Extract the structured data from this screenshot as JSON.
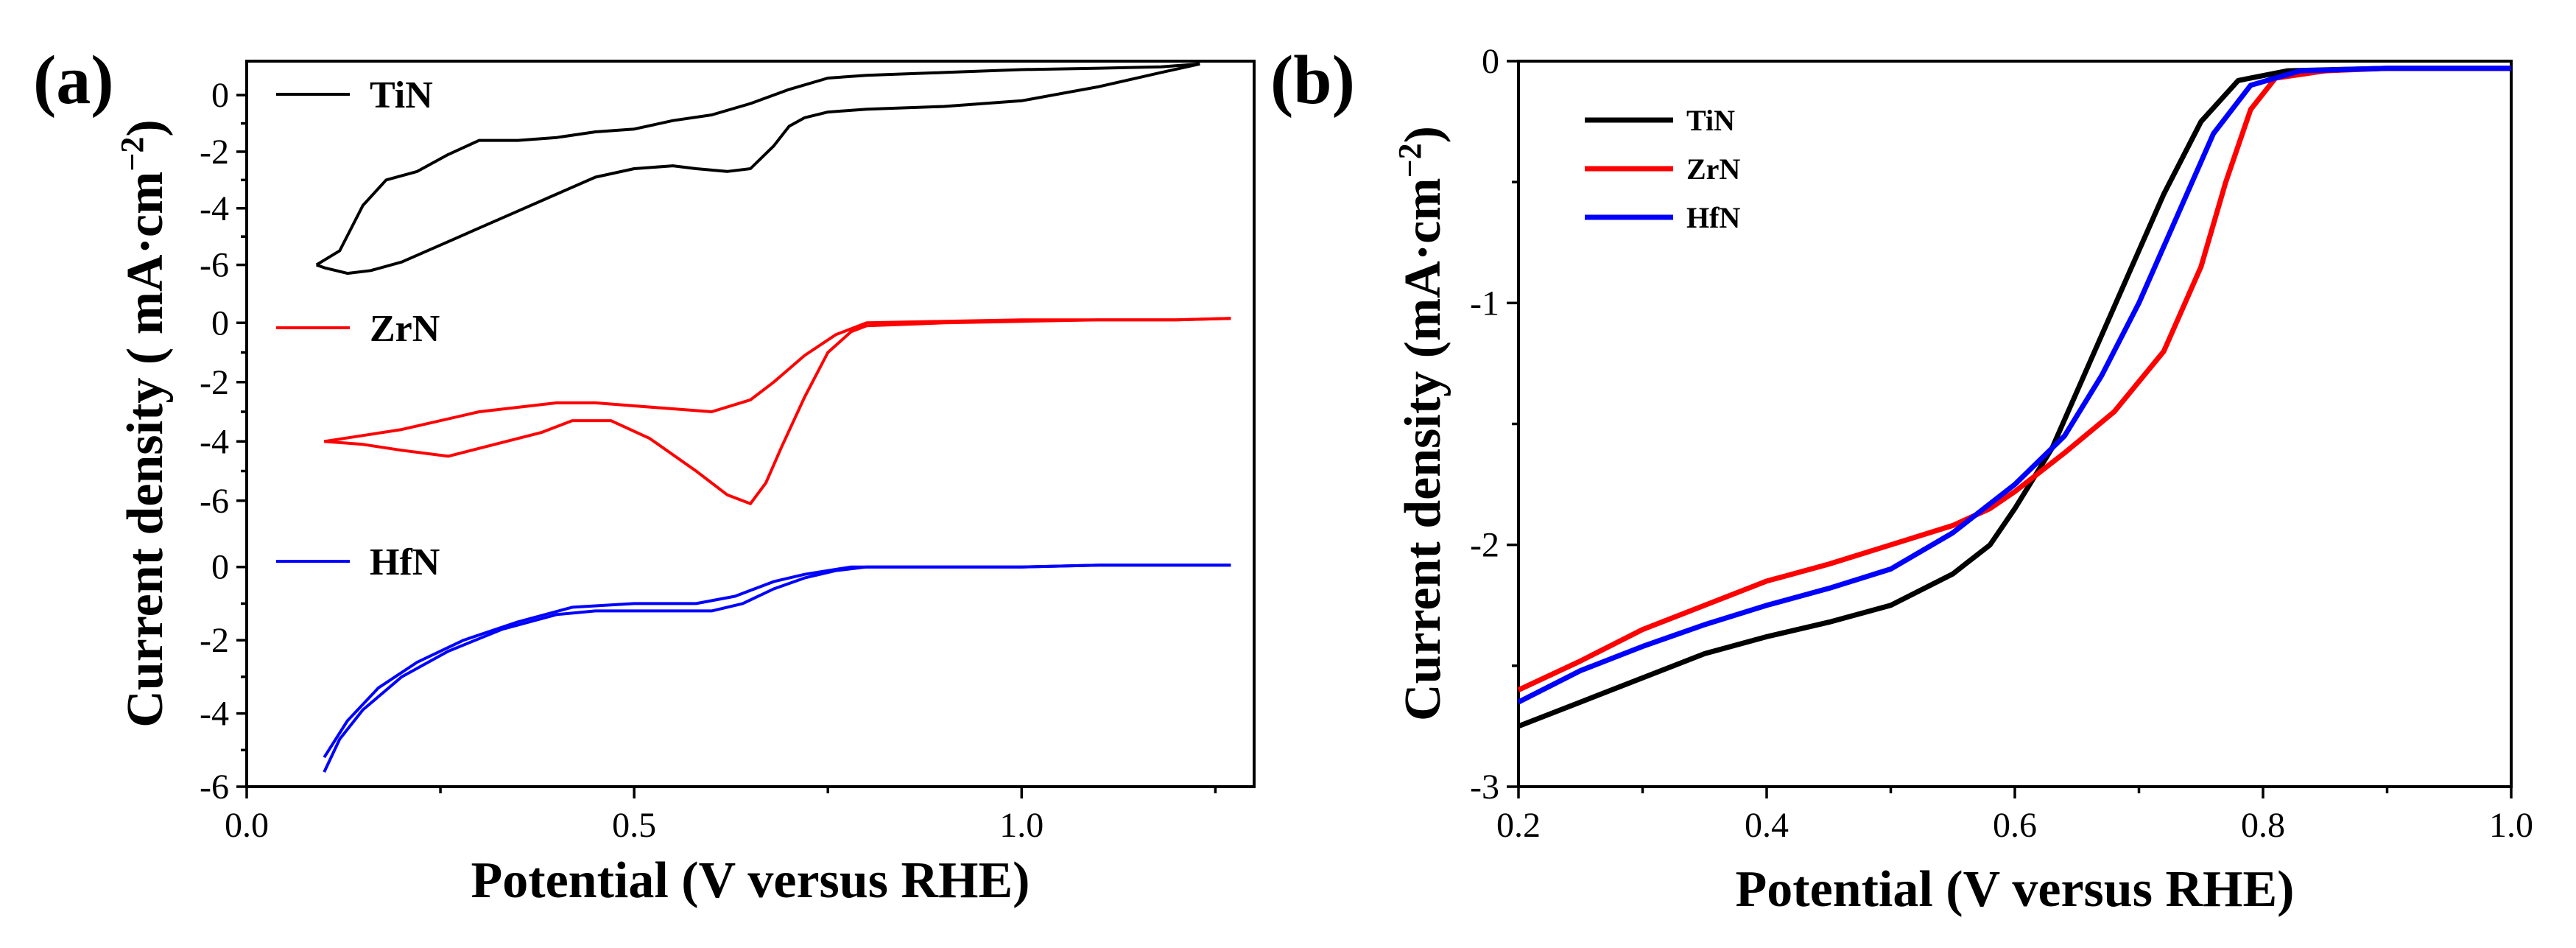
{
  "chart_data": [
    {
      "panel": "(a)",
      "type": "line",
      "subtype": "cyclic voltammetry, stacked offset panels",
      "xlabel": "Potential (V versus RHE)",
      "ylabel": "Current density ( mA·cm",
      "ylabel_sup": "−2",
      "ylabel_close": ")",
      "xlim": [
        0.0,
        1.3
      ],
      "xticks": [
        0.0,
        0.5,
        1.0
      ],
      "xtick_labels": [
        "0.0",
        "0.5",
        "1.0"
      ],
      "subpanels": [
        {
          "name": "TiN",
          "color": "#000000",
          "ylim": [
            -7,
            1.2
          ],
          "yticks": [
            0,
            -2,
            -4,
            -6
          ],
          "ytick_labels": [
            "0",
            "-2",
            "-4",
            "-6"
          ],
          "curves": [
            [
              [
                0.09,
                -6.0
              ],
              [
                0.12,
                -5.5
              ],
              [
                0.15,
                -3.9
              ],
              [
                0.18,
                -3.0
              ],
              [
                0.22,
                -2.7
              ],
              [
                0.26,
                -2.1
              ],
              [
                0.3,
                -1.6
              ],
              [
                0.35,
                -1.6
              ],
              [
                0.4,
                -1.5
              ],
              [
                0.45,
                -1.3
              ],
              [
                0.5,
                -1.2
              ],
              [
                0.55,
                -0.9
              ],
              [
                0.6,
                -0.7
              ],
              [
                0.65,
                -0.3
              ],
              [
                0.7,
                0.2
              ],
              [
                0.75,
                0.6
              ],
              [
                0.8,
                0.7
              ],
              [
                0.9,
                0.8
              ],
              [
                1.0,
                0.9
              ],
              [
                1.1,
                0.95
              ],
              [
                1.18,
                1.0
              ],
              [
                1.23,
                1.1
              ]
            ],
            [
              [
                1.23,
                1.1
              ],
              [
                1.18,
                0.8
              ],
              [
                1.1,
                0.3
              ],
              [
                1.0,
                -0.2
              ],
              [
                0.9,
                -0.4
              ],
              [
                0.8,
                -0.5
              ],
              [
                0.75,
                -0.6
              ],
              [
                0.72,
                -0.8
              ],
              [
                0.7,
                -1.1
              ],
              [
                0.68,
                -1.8
              ],
              [
                0.65,
                -2.6
              ],
              [
                0.62,
                -2.7
              ],
              [
                0.58,
                -2.6
              ],
              [
                0.55,
                -2.5
              ],
              [
                0.5,
                -2.6
              ],
              [
                0.45,
                -2.9
              ],
              [
                0.4,
                -3.5
              ],
              [
                0.35,
                -4.1
              ],
              [
                0.3,
                -4.7
              ],
              [
                0.25,
                -5.3
              ],
              [
                0.2,
                -5.9
              ],
              [
                0.16,
                -6.2
              ],
              [
                0.13,
                -6.3
              ],
              [
                0.1,
                -6.1
              ],
              [
                0.09,
                -6.0
              ]
            ]
          ]
        },
        {
          "name": "ZrN",
          "color": "#ff0000",
          "ylim": [
            -7,
            1.0
          ],
          "yticks": [
            0,
            -2,
            -4,
            -6
          ],
          "ytick_labels": [
            "0",
            "-2",
            "-4",
            "-6"
          ],
          "curves": [
            [
              [
                0.1,
                -4.0
              ],
              [
                0.2,
                -3.6
              ],
              [
                0.3,
                -3.0
              ],
              [
                0.4,
                -2.7
              ],
              [
                0.45,
                -2.7
              ],
              [
                0.5,
                -2.8
              ],
              [
                0.55,
                -2.9
              ],
              [
                0.6,
                -3.0
              ],
              [
                0.65,
                -2.6
              ],
              [
                0.68,
                -2.0
              ],
              [
                0.72,
                -1.1
              ],
              [
                0.76,
                -0.4
              ],
              [
                0.8,
                0.0
              ],
              [
                0.9,
                0.05
              ],
              [
                1.0,
                0.1
              ],
              [
                1.1,
                0.1
              ],
              [
                1.2,
                0.1
              ],
              [
                1.27,
                0.15
              ]
            ],
            [
              [
                1.27,
                0.15
              ],
              [
                1.2,
                0.1
              ],
              [
                1.1,
                0.1
              ],
              [
                1.0,
                0.05
              ],
              [
                0.9,
                0.0
              ],
              [
                0.8,
                -0.1
              ],
              [
                0.78,
                -0.3
              ],
              [
                0.75,
                -1.0
              ],
              [
                0.72,
                -2.5
              ],
              [
                0.69,
                -4.2
              ],
              [
                0.67,
                -5.4
              ],
              [
                0.65,
                -6.1
              ],
              [
                0.62,
                -5.8
              ],
              [
                0.58,
                -5.0
              ],
              [
                0.52,
                -3.9
              ],
              [
                0.47,
                -3.3
              ],
              [
                0.42,
                -3.3
              ],
              [
                0.38,
                -3.7
              ],
              [
                0.32,
                -4.1
              ],
              [
                0.26,
                -4.5
              ],
              [
                0.2,
                -4.3
              ],
              [
                0.15,
                -4.1
              ],
              [
                0.1,
                -4.0
              ]
            ]
          ]
        },
        {
          "name": "HfN",
          "color": "#0000ff",
          "ylim": [
            -6,
            1.0
          ],
          "yticks": [
            0,
            -2,
            -4,
            -6
          ],
          "ytick_labels": [
            "0",
            "-2",
            "-4",
            "-6"
          ],
          "curves": [
            [
              [
                0.1,
                -5.2
              ],
              [
                0.13,
                -4.2
              ],
              [
                0.17,
                -3.3
              ],
              [
                0.22,
                -2.6
              ],
              [
                0.28,
                -2.0
              ],
              [
                0.35,
                -1.5
              ],
              [
                0.42,
                -1.1
              ],
              [
                0.5,
                -1.0
              ],
              [
                0.58,
                -1.0
              ],
              [
                0.63,
                -0.8
              ],
              [
                0.68,
                -0.4
              ],
              [
                0.72,
                -0.2
              ],
              [
                0.78,
                0.0
              ],
              [
                0.9,
                0.0
              ],
              [
                1.0,
                0.0
              ],
              [
                1.1,
                0.05
              ],
              [
                1.27,
                0.05
              ]
            ],
            [
              [
                1.27,
                0.05
              ],
              [
                1.1,
                0.05
              ],
              [
                1.0,
                0.0
              ],
              [
                0.9,
                0.0
              ],
              [
                0.8,
                0.0
              ],
              [
                0.76,
                -0.1
              ],
              [
                0.72,
                -0.3
              ],
              [
                0.68,
                -0.6
              ],
              [
                0.64,
                -1.0
              ],
              [
                0.6,
                -1.2
              ],
              [
                0.55,
                -1.2
              ],
              [
                0.5,
                -1.2
              ],
              [
                0.45,
                -1.2
              ],
              [
                0.4,
                -1.3
              ],
              [
                0.33,
                -1.7
              ],
              [
                0.26,
                -2.3
              ],
              [
                0.2,
                -3.0
              ],
              [
                0.15,
                -3.9
              ],
              [
                0.12,
                -4.7
              ],
              [
                0.1,
                -5.6
              ]
            ]
          ]
        }
      ]
    },
    {
      "panel": "(b)",
      "type": "line",
      "subtype": "linear sweep voltammetry",
      "xlabel": "Potential (V versus RHE)",
      "ylabel": "Current density (mA·cm",
      "ylabel_sup": "−2",
      "ylabel_close": ")",
      "xlim": [
        0.2,
        1.0
      ],
      "ylim": [
        -3,
        0
      ],
      "xticks": [
        0.2,
        0.4,
        0.6,
        0.8,
        1.0
      ],
      "xtick_labels": [
        "0.2",
        "0.4",
        "0.6",
        "0.8",
        "1.0"
      ],
      "yticks": [
        0,
        -1,
        -2,
        -3
      ],
      "ytick_labels": [
        "0",
        "-1",
        "-2",
        "-3"
      ],
      "legend": "top-left",
      "series": [
        {
          "name": "TiN",
          "color": "#000000",
          "points": [
            [
              0.2,
              -2.75
            ],
            [
              0.25,
              -2.65
            ],
            [
              0.3,
              -2.55
            ],
            [
              0.35,
              -2.45
            ],
            [
              0.4,
              -2.38
            ],
            [
              0.45,
              -2.32
            ],
            [
              0.5,
              -2.25
            ],
            [
              0.55,
              -2.12
            ],
            [
              0.58,
              -2.0
            ],
            [
              0.6,
              -1.85
            ],
            [
              0.63,
              -1.6
            ],
            [
              0.66,
              -1.25
            ],
            [
              0.69,
              -0.9
            ],
            [
              0.72,
              -0.55
            ],
            [
              0.75,
              -0.25
            ],
            [
              0.78,
              -0.08
            ],
            [
              0.82,
              -0.04
            ],
            [
              0.9,
              -0.03
            ],
            [
              1.0,
              -0.03
            ]
          ]
        },
        {
          "name": "ZrN",
          "color": "#ff0000",
          "points": [
            [
              0.2,
              -2.6
            ],
            [
              0.25,
              -2.48
            ],
            [
              0.3,
              -2.35
            ],
            [
              0.35,
              -2.25
            ],
            [
              0.4,
              -2.15
            ],
            [
              0.45,
              -2.08
            ],
            [
              0.5,
              -2.0
            ],
            [
              0.55,
              -1.92
            ],
            [
              0.58,
              -1.85
            ],
            [
              0.6,
              -1.78
            ],
            [
              0.64,
              -1.62
            ],
            [
              0.68,
              -1.45
            ],
            [
              0.72,
              -1.2
            ],
            [
              0.75,
              -0.85
            ],
            [
              0.77,
              -0.5
            ],
            [
              0.79,
              -0.2
            ],
            [
              0.81,
              -0.07
            ],
            [
              0.85,
              -0.04
            ],
            [
              0.9,
              -0.03
            ],
            [
              1.0,
              -0.03
            ]
          ]
        },
        {
          "name": "HfN",
          "color": "#0000ff",
          "points": [
            [
              0.2,
              -2.65
            ],
            [
              0.25,
              -2.52
            ],
            [
              0.3,
              -2.42
            ],
            [
              0.35,
              -2.33
            ],
            [
              0.4,
              -2.25
            ],
            [
              0.45,
              -2.18
            ],
            [
              0.5,
              -2.1
            ],
            [
              0.55,
              -1.95
            ],
            [
              0.58,
              -1.83
            ],
            [
              0.6,
              -1.75
            ],
            [
              0.64,
              -1.55
            ],
            [
              0.67,
              -1.3
            ],
            [
              0.7,
              -1.0
            ],
            [
              0.73,
              -0.65
            ],
            [
              0.76,
              -0.3
            ],
            [
              0.79,
              -0.1
            ],
            [
              0.83,
              -0.04
            ],
            [
              0.9,
              -0.03
            ],
            [
              1.0,
              -0.03
            ]
          ]
        }
      ]
    }
  ]
}
